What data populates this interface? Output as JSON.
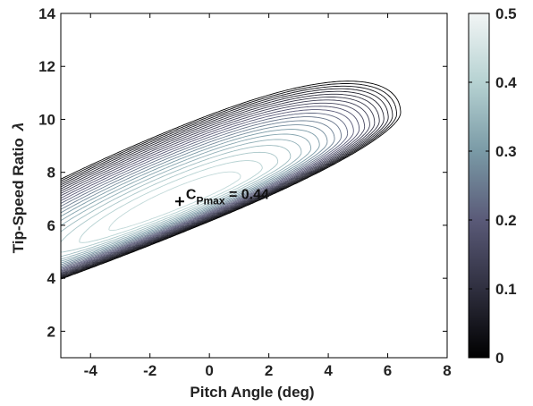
{
  "chart_data": {
    "type": "contour",
    "xlabel": "Pitch Angle (deg)",
    "ylabel": "Tip-Speed Ratio",
    "ylabel_symbol": "λ",
    "xlim": [
      -5,
      8
    ],
    "ylim": [
      1,
      14
    ],
    "x_ticks": [
      "-4",
      "-2",
      "0",
      "2",
      "4",
      "6",
      "8"
    ],
    "y_ticks": [
      "2",
      "4",
      "6",
      "8",
      "10",
      "12",
      "14"
    ],
    "colorbar": {
      "range": [
        0,
        0.5
      ],
      "ticks": [
        "0",
        "0.1",
        "0.2",
        "0.3",
        "0.4",
        "0.5"
      ],
      "colors": [
        "#000000",
        "#2f2f3f",
        "#5a5a78",
        "#7a9aa6",
        "#b6d2d2",
        "#f2f5f5"
      ]
    },
    "contour_levels": [
      0.0,
      0.02,
      0.04,
      0.06,
      0.08,
      0.1,
      0.12,
      0.14,
      0.16,
      0.18,
      0.2,
      0.22,
      0.24,
      0.26,
      0.28,
      0.3,
      0.32,
      0.34,
      0.36,
      0.38,
      0.4,
      0.42
    ],
    "annotations": [
      {
        "marker": "+",
        "x": -1.0,
        "y": 6.9,
        "label_main": "C",
        "label_sub": "Pmax",
        "label_suffix": " = 0.44"
      }
    ]
  }
}
